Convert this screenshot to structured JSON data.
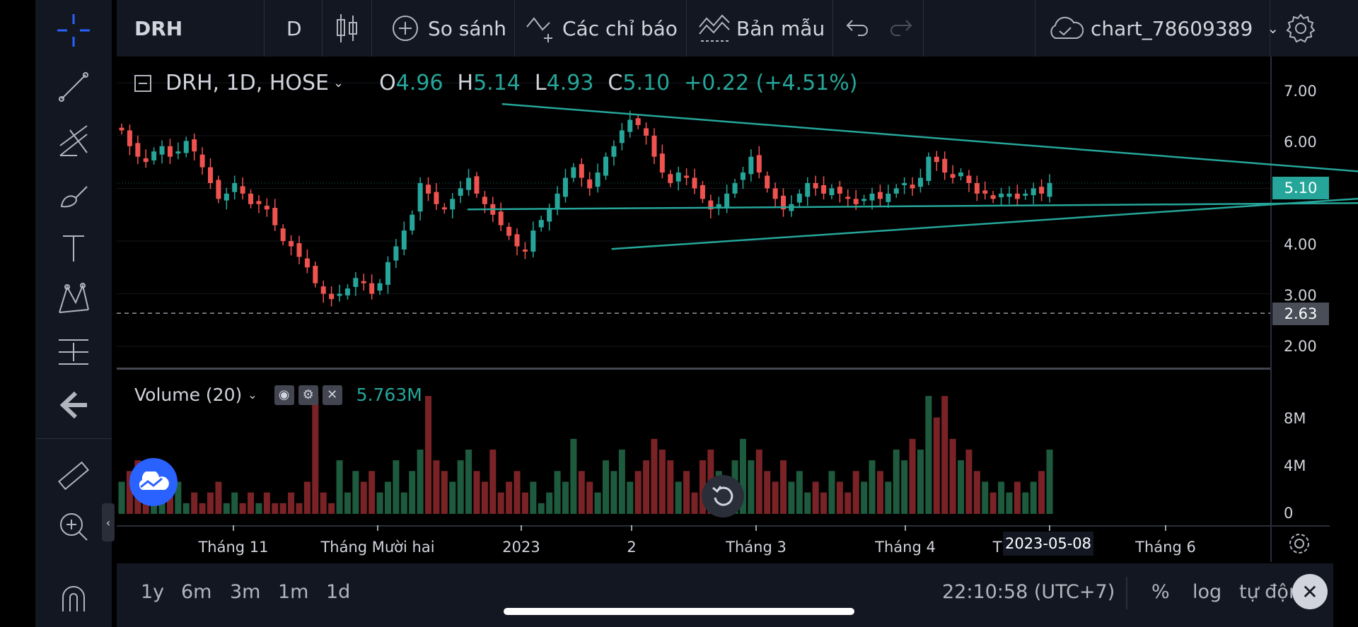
{
  "toolbar": {
    "symbol": "DRH",
    "interval": "D",
    "compare_label": "So sánh",
    "indicators_label": "Các chỉ báo",
    "templates_label": "Bản mẫu",
    "chart_name": "chart_78609389"
  },
  "legend": {
    "title": "DRH, 1D, HOSE",
    "o_label": "O",
    "o_value": "4.96",
    "h_label": "H",
    "h_value": "5.14",
    "l_label": "L",
    "l_value": "4.93",
    "c_label": "C",
    "c_value": "5.10",
    "change": "+0.22 (+4.51%)"
  },
  "volume_legend": {
    "title": "Volume (20)",
    "value": "5.763M"
  },
  "price_scale": {
    "ticks": [
      "7.00",
      "6.00",
      "5.10",
      "4.00",
      "3.00",
      "2.63",
      "2.00"
    ],
    "current": "5.10",
    "crosshair": "2.63"
  },
  "volume_scale": {
    "ticks": [
      "8M",
      "4M",
      "0"
    ]
  },
  "time_scale": {
    "ticks": [
      "Tháng 11",
      "Tháng Mười hai",
      "2023",
      "2",
      "Tháng 3",
      "Tháng 4",
      "T",
      "Tháng 6"
    ],
    "crosshair_date": "2023-05-08"
  },
  "bottom_bar": {
    "ranges": [
      "1y",
      "6m",
      "3m",
      "1m",
      "1d"
    ],
    "clock": "22:10:58 (UTC+7)",
    "percent": "%",
    "log": "log",
    "auto": "tự động"
  },
  "colors": {
    "up": "#26a69a",
    "down": "#ef5350",
    "vol_up": "#1e5b3e",
    "vol_down": "#7a2326",
    "accent": "#2962ff"
  },
  "chart_data": {
    "type": "candlestick",
    "symbol": "DRH",
    "interval": "1D",
    "exchange": "HOSE",
    "y_range": [
      1.6,
      7.5
    ],
    "volume_range_millions": [
      0,
      12
    ],
    "ohlc_last": {
      "o": 4.96,
      "h": 5.14,
      "l": 4.93,
      "c": 5.1,
      "volume": "5.763M"
    },
    "closes": [
      6.1,
      5.8,
      5.6,
      5.5,
      5.7,
      5.8,
      5.6,
      5.7,
      5.9,
      5.7,
      5.4,
      5.1,
      4.8,
      4.9,
      5.1,
      4.9,
      4.7,
      4.7,
      4.6,
      4.3,
      4.0,
      3.9,
      3.7,
      3.5,
      3.2,
      3.0,
      2.9,
      3.0,
      3.1,
      3.3,
      3.2,
      3.0,
      3.2,
      3.6,
      3.9,
      4.2,
      4.5,
      5.1,
      4.9,
      4.7,
      4.6,
      4.8,
      5.0,
      5.2,
      4.9,
      4.7,
      4.5,
      4.3,
      4.1,
      3.9,
      3.8,
      4.2,
      4.4,
      4.6,
      4.9,
      5.2,
      5.4,
      5.2,
      5.0,
      5.3,
      5.6,
      5.8,
      6.1,
      6.3,
      6.2,
      6.0,
      5.6,
      5.3,
      5.1,
      5.3,
      5.2,
      5.0,
      4.8,
      4.6,
      4.7,
      4.9,
      5.1,
      5.3,
      5.6,
      5.3,
      5.0,
      4.8,
      4.6,
      4.7,
      4.9,
      5.1,
      5.0,
      4.9,
      5.0,
      4.9,
      4.8,
      4.7,
      4.8,
      4.9,
      4.8,
      4.9,
      5.0,
      5.1,
      5.0,
      5.2,
      5.6,
      5.5,
      5.3,
      5.2,
      5.3,
      5.1,
      4.9,
      4.9,
      4.8,
      4.9,
      4.9,
      4.8,
      4.9,
      5.0,
      4.9,
      5.1
    ],
    "volumes_m": [
      3,
      4,
      5,
      2,
      3,
      1,
      2,
      3,
      1,
      2,
      1,
      2,
      3,
      1,
      2,
      1,
      2,
      1,
      2,
      1,
      1,
      2,
      1,
      3,
      11,
      2,
      1,
      5,
      2,
      4,
      3,
      4,
      2,
      3,
      5,
      2,
      4,
      6,
      11,
      5,
      4,
      3,
      5,
      6,
      4,
      3,
      6,
      2,
      3,
      4,
      2,
      3,
      1,
      2,
      4,
      3,
      7,
      4,
      3,
      2,
      5,
      4,
      6,
      3,
      4,
      5,
      7,
      6,
      5,
      3,
      4,
      2,
      5,
      6,
      4,
      3,
      5,
      7,
      5,
      6,
      4,
      3,
      5,
      3,
      4,
      2,
      3,
      2,
      4,
      3,
      2,
      4,
      3,
      5,
      4,
      3,
      6,
      5,
      7,
      6,
      11,
      9,
      11,
      7,
      5,
      6,
      4,
      3,
      2,
      3,
      2,
      3,
      2,
      3,
      4,
      6
    ],
    "trendlines": [
      {
        "name": "upper",
        "from": [
          "2022-12-01",
          6.6
        ],
        "to": [
          "2023-06-05",
          5.0
        ]
      },
      {
        "name": "lower",
        "from": [
          "2022-12-20",
          3.85
        ],
        "to": [
          "2023-06-01",
          5.05
        ]
      },
      {
        "name": "horizontal",
        "from": [
          "2022-11-25",
          4.6
        ],
        "to": [
          "2023-06-05",
          4.75
        ]
      }
    ],
    "crosshair": {
      "date": "2023-05-08",
      "price": 2.63
    }
  }
}
